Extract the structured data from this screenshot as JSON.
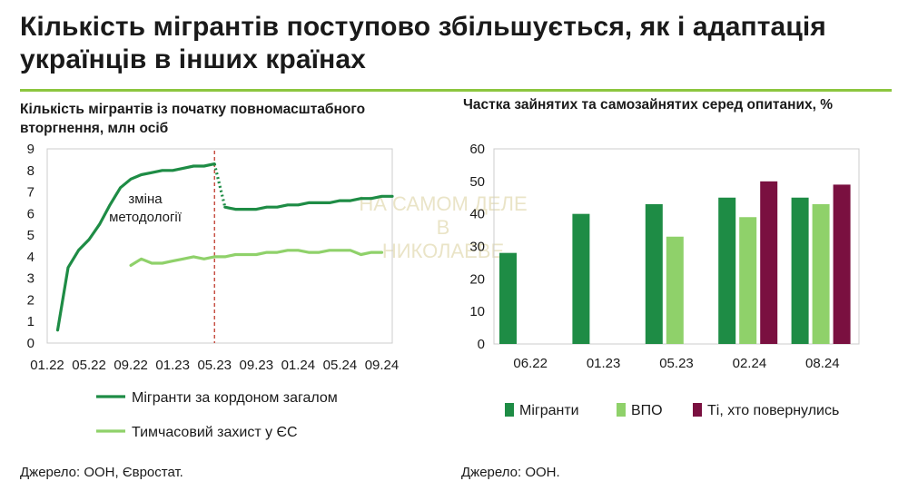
{
  "title": "Кількість мігрантів поступово збільшується,  як і адаптація українців в інших країнах",
  "source_left": "Джерело: ООН, Євростат.",
  "source_right": "Джерело: ООН.",
  "watermark": [
    "НА САМОМ ДЕЛЕ В",
    "НИКОЛАЕВЕ"
  ],
  "colors": {
    "accent_rule": "#8cc63f",
    "migrants": "#1e8c45",
    "temp_protection": "#8fd16a",
    "vpo": "#8fd16a",
    "returned": "#7a1040",
    "chart_border": "#cccccc",
    "vline": "#c0392b"
  },
  "chart_data": [
    {
      "type": "line",
      "title": "Кількість мігрантів із початку повномасштабного вторгнення, млн осіб",
      "xlabel": "",
      "ylabel": "",
      "ylim": [
        0,
        9
      ],
      "yticks": [
        "0",
        "1",
        "2",
        "3",
        "4",
        "5",
        "6",
        "7",
        "8",
        "9"
      ],
      "xticks": [
        "01.22",
        "05.22",
        "09.22",
        "01.23",
        "05.23",
        "09.23",
        "01.24",
        "05.24",
        "09.24"
      ],
      "xlim": [
        "2022-01",
        "2024-10"
      ],
      "vertical_marker": "2023-05",
      "annotation": [
        "зміна",
        "методології"
      ],
      "series": [
        {
          "name": "Мігранти за кордоном загалом",
          "segments": [
            {
              "style": "solid",
              "points": [
                [
                  "2022-02",
                  0.6
                ],
                [
                  "2022-03",
                  3.5
                ],
                [
                  "2022-04",
                  4.3
                ],
                [
                  "2022-05",
                  4.8
                ],
                [
                  "2022-06",
                  5.5
                ],
                [
                  "2022-07",
                  6.4
                ],
                [
                  "2022-08",
                  7.2
                ],
                [
                  "2022-09",
                  7.6
                ],
                [
                  "2022-10",
                  7.8
                ],
                [
                  "2022-11",
                  7.9
                ],
                [
                  "2022-12",
                  8.0
                ],
                [
                  "2023-01",
                  8.0
                ],
                [
                  "2023-02",
                  8.1
                ],
                [
                  "2023-03",
                  8.2
                ],
                [
                  "2023-04",
                  8.2
                ],
                [
                  "2023-05",
                  8.3
                ]
              ]
            },
            {
              "style": "dotted",
              "points": [
                [
                  "2023-05",
                  8.3
                ],
                [
                  "2023-06",
                  6.3
                ]
              ]
            },
            {
              "style": "solid",
              "points": [
                [
                  "2023-06",
                  6.3
                ],
                [
                  "2023-07",
                  6.2
                ],
                [
                  "2023-08",
                  6.2
                ],
                [
                  "2023-09",
                  6.2
                ],
                [
                  "2023-10",
                  6.3
                ],
                [
                  "2023-11",
                  6.3
                ],
                [
                  "2023-12",
                  6.4
                ],
                [
                  "2024-01",
                  6.4
                ],
                [
                  "2024-02",
                  6.5
                ],
                [
                  "2024-03",
                  6.5
                ],
                [
                  "2024-04",
                  6.5
                ],
                [
                  "2024-05",
                  6.6
                ],
                [
                  "2024-06",
                  6.6
                ],
                [
                  "2024-07",
                  6.7
                ],
                [
                  "2024-08",
                  6.7
                ],
                [
                  "2024-09",
                  6.8
                ],
                [
                  "2024-10",
                  6.8
                ]
              ]
            }
          ]
        },
        {
          "name": "Тимчасовий захист у ЄС",
          "segments": [
            {
              "style": "solid",
              "points": [
                [
                  "2022-09",
                  3.6
                ],
                [
                  "2022-10",
                  3.9
                ],
                [
                  "2022-11",
                  3.7
                ],
                [
                  "2022-12",
                  3.7
                ],
                [
                  "2023-01",
                  3.8
                ],
                [
                  "2023-02",
                  3.9
                ],
                [
                  "2023-03",
                  4.0
                ],
                [
                  "2023-04",
                  3.9
                ],
                [
                  "2023-05",
                  4.0
                ],
                [
                  "2023-06",
                  4.0
                ],
                [
                  "2023-07",
                  4.1
                ],
                [
                  "2023-08",
                  4.1
                ],
                [
                  "2023-09",
                  4.1
                ],
                [
                  "2023-10",
                  4.2
                ],
                [
                  "2023-11",
                  4.2
                ],
                [
                  "2023-12",
                  4.3
                ],
                [
                  "2024-01",
                  4.3
                ],
                [
                  "2024-02",
                  4.2
                ],
                [
                  "2024-03",
                  4.2
                ],
                [
                  "2024-04",
                  4.3
                ],
                [
                  "2024-05",
                  4.3
                ],
                [
                  "2024-06",
                  4.3
                ],
                [
                  "2024-07",
                  4.1
                ],
                [
                  "2024-08",
                  4.2
                ],
                [
                  "2024-09",
                  4.2
                ]
              ]
            }
          ]
        }
      ],
      "legend": [
        "Мігранти за кордоном загалом",
        "Тимчасовий захист у ЄС"
      ],
      "legend_position": "bottom"
    },
    {
      "type": "bar",
      "title": "Частка зайнятих та самозайнятих серед опитаних, %",
      "xlabel": "",
      "ylabel": "",
      "ylim": [
        0,
        60
      ],
      "yticks": [
        "0",
        "10",
        "20",
        "30",
        "40",
        "50",
        "60"
      ],
      "categories": [
        "06.22",
        "01.23",
        "05.23",
        "02.24",
        "08.24"
      ],
      "series": [
        {
          "name": "Мігранти",
          "values": [
            28,
            40,
            43,
            45,
            45
          ]
        },
        {
          "name": "ВПО",
          "values": [
            null,
            null,
            33,
            39,
            43
          ]
        },
        {
          "name": "Ті, хто повернулись",
          "values": [
            null,
            null,
            null,
            50,
            49
          ]
        }
      ],
      "legend": [
        "Мігранти",
        "ВПО",
        "Ті, хто повернулись"
      ],
      "legend_position": "bottom"
    }
  ]
}
